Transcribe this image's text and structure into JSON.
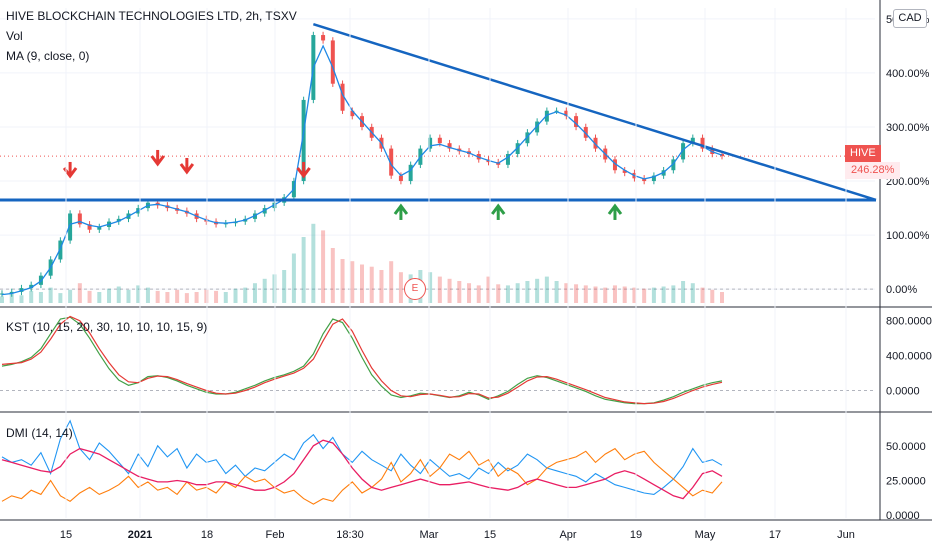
{
  "header": {
    "title": "HIVE BLOCKCHAIN TECHNOLOGIES LTD, 2h, TSXV",
    "vol_label": "Vol",
    "ma_label": "MA (9, close, 0)",
    "currency": "CAD",
    "symbol_tag": "HIVE",
    "last_value": "246.28%",
    "earnings_badge": "E"
  },
  "colors": {
    "price_line": "#1e88e5",
    "up": "#26a69a",
    "down": "#ef5350",
    "kst_line": "#43a047",
    "kst_signal": "#e53935",
    "dmi_plus": "#2196f3",
    "dmi_minus": "#ff7f0e",
    "adx": "#e91e63",
    "arrow_red": "#e53935",
    "arrow_green": "#2e9e48"
  },
  "chart_data": [
    {
      "type": "line",
      "name": "price",
      "x_ticks": [
        "15",
        "2021",
        "18",
        "Feb",
        "18:30",
        "Mar",
        "15",
        "Apr",
        "19",
        "May",
        "17",
        "Jun"
      ],
      "y_ticks": [
        "500.00%",
        "400.00%",
        "300.00%",
        "200.00%",
        "100.00%",
        "0.00%"
      ],
      "ylim": [
        -20,
        520
      ],
      "close": [
        -8,
        -5,
        2,
        8,
        25,
        55,
        90,
        140,
        120,
        110,
        115,
        125,
        130,
        140,
        150,
        160,
        155,
        150,
        145,
        140,
        130,
        125,
        120,
        122,
        125,
        130,
        140,
        150,
        160,
        170,
        200,
        350,
        470,
        460,
        380,
        330,
        320,
        300,
        280,
        260,
        210,
        200,
        230,
        260,
        280,
        270,
        260,
        255,
        250,
        240,
        235,
        230,
        250,
        270,
        290,
        310,
        330,
        330,
        320,
        300,
        280,
        260,
        240,
        220,
        215,
        205,
        200,
        210,
        220,
        240,
        270,
        280,
        260,
        250,
        246
      ],
      "ma": [
        -10,
        -8,
        -3,
        3,
        15,
        40,
        75,
        120,
        125,
        118,
        115,
        120,
        126,
        135,
        145,
        155,
        157,
        153,
        148,
        143,
        135,
        128,
        123,
        122,
        124,
        128,
        136,
        146,
        156,
        166,
        185,
        290,
        410,
        450,
        410,
        360,
        330,
        310,
        290,
        270,
        230,
        210,
        220,
        245,
        265,
        268,
        262,
        257,
        252,
        244,
        238,
        233,
        244,
        262,
        282,
        302,
        322,
        328,
        322,
        306,
        288,
        268,
        250,
        232,
        220,
        210,
        204,
        208,
        216,
        232,
        258,
        272,
        264,
        254,
        248
      ],
      "trendline_top": {
        "from": 32,
        "to": 87,
        "y_from": 490,
        "y_to": 165
      },
      "support_line": {
        "y": 165
      },
      "down_arrows": [
        7,
        16,
        19,
        31
      ],
      "up_arrows": [
        41,
        51,
        63
      ],
      "volume": [
        6,
        9,
        7,
        11,
        10,
        14,
        9,
        12,
        18,
        11,
        10,
        13,
        15,
        12,
        16,
        14,
        11,
        10,
        12,
        9,
        10,
        12,
        11,
        10,
        13,
        14,
        18,
        22,
        26,
        30,
        45,
        60,
        72,
        66,
        50,
        40,
        38,
        35,
        33,
        30,
        38,
        28,
        26,
        30,
        28,
        24,
        22,
        20,
        18,
        16,
        24,
        17,
        16,
        18,
        20,
        22,
        24,
        20,
        18,
        17,
        16,
        15,
        14,
        16,
        15,
        14,
        13,
        14,
        15,
        16,
        20,
        18,
        14,
        12,
        10
      ]
    },
    {
      "type": "line",
      "name": "KST (10, 15, 20, 30, 10, 10, 10, 15, 9)",
      "y_ticks": [
        "800.0000",
        "400.0000",
        "0.0000"
      ],
      "ylim": [
        -200,
        900
      ],
      "kst": [
        280,
        300,
        330,
        380,
        480,
        650,
        820,
        840,
        760,
        600,
        420,
        250,
        120,
        60,
        90,
        160,
        170,
        150,
        110,
        60,
        20,
        -20,
        -40,
        -40,
        -20,
        20,
        60,
        110,
        150,
        180,
        220,
        280,
        420,
        650,
        820,
        780,
        600,
        380,
        180,
        50,
        -50,
        -80,
        -60,
        -30,
        -40,
        -60,
        -80,
        -60,
        -20,
        -50,
        -100,
        -60,
        -10,
        70,
        140,
        170,
        150,
        110,
        70,
        30,
        -10,
        -60,
        -100,
        -120,
        -140,
        -150,
        -150,
        -140,
        -110,
        -70,
        -20,
        20,
        60,
        90,
        110
      ],
      "signal": [
        300,
        310,
        320,
        360,
        440,
        590,
        760,
        850,
        800,
        660,
        480,
        320,
        180,
        100,
        90,
        140,
        165,
        160,
        125,
        80,
        40,
        0,
        -30,
        -40,
        -30,
        0,
        40,
        90,
        130,
        165,
        200,
        255,
        360,
        570,
        760,
        820,
        680,
        460,
        260,
        110,
        0,
        -60,
        -70,
        -45,
        -40,
        -55,
        -75,
        -70,
        -35,
        -40,
        -85,
        -75,
        -30,
        40,
        110,
        155,
        160,
        130,
        90,
        50,
        10,
        -35,
        -80,
        -105,
        -130,
        -140,
        -150,
        -145,
        -125,
        -90,
        -45,
        0,
        40,
        70,
        95
      ]
    },
    {
      "type": "line",
      "name": "DMI (14, 14)",
      "y_ticks": [
        "50.0000",
        "25.0000",
        "0.0000"
      ],
      "ylim": [
        -2,
        70
      ],
      "di_plus": [
        42,
        38,
        40,
        36,
        45,
        30,
        55,
        68,
        48,
        40,
        52,
        46,
        38,
        30,
        44,
        35,
        50,
        42,
        48,
        34,
        44,
        38,
        40,
        30,
        36,
        28,
        34,
        32,
        38,
        44,
        40,
        52,
        58,
        48,
        56,
        44,
        38,
        46,
        40,
        36,
        32,
        44,
        36,
        30,
        40,
        34,
        28,
        30,
        26,
        34,
        30,
        38,
        32,
        36,
        44,
        40,
        34,
        32,
        30,
        28,
        24,
        30,
        26,
        22,
        20,
        18,
        16,
        15,
        20,
        26,
        35,
        48,
        38,
        40,
        36
      ],
      "di_minus": [
        10,
        14,
        12,
        18,
        15,
        25,
        14,
        10,
        16,
        20,
        15,
        18,
        22,
        28,
        20,
        24,
        18,
        20,
        15,
        24,
        18,
        20,
        16,
        24,
        20,
        28,
        24,
        26,
        20,
        16,
        18,
        12,
        8,
        12,
        10,
        18,
        24,
        16,
        20,
        26,
        38,
        24,
        30,
        40,
        28,
        34,
        44,
        40,
        46,
        36,
        40,
        28,
        34,
        30,
        22,
        26,
        34,
        38,
        40,
        42,
        46,
        38,
        44,
        48,
        40,
        44,
        46,
        38,
        32,
        26,
        20,
        14,
        18,
        16,
        24
      ],
      "adx": [
        40,
        38,
        36,
        34,
        32,
        31,
        35,
        44,
        48,
        46,
        44,
        40,
        36,
        32,
        28,
        26,
        24,
        24,
        25,
        24,
        22,
        22,
        24,
        24,
        22,
        20,
        18,
        18,
        20,
        24,
        30,
        40,
        50,
        54,
        52,
        44,
        34,
        26,
        20,
        18,
        20,
        22,
        24,
        26,
        24,
        22,
        22,
        23,
        24,
        22,
        20,
        19,
        18,
        20,
        24,
        26,
        24,
        22,
        20,
        20,
        22,
        24,
        26,
        30,
        32,
        30,
        26,
        22,
        18,
        14,
        12,
        20,
        30,
        32,
        28
      ]
    }
  ]
}
